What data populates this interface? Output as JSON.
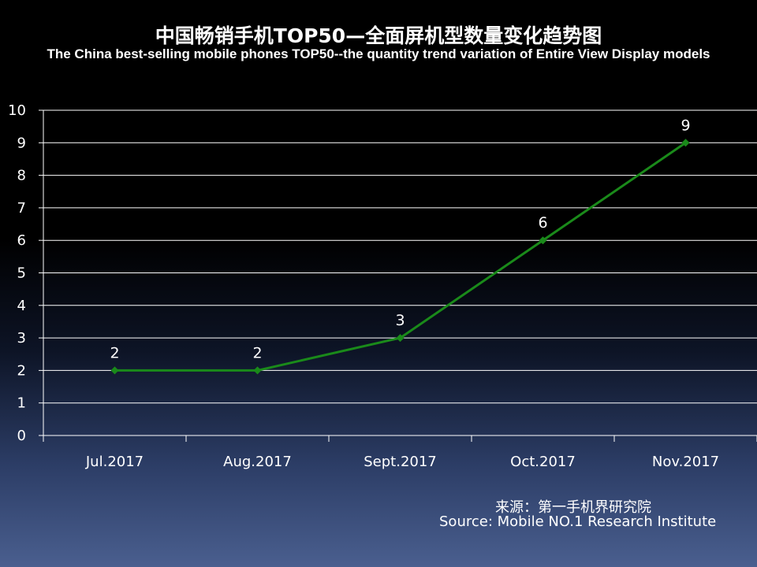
{
  "title": "中国畅销手机TOP50—全面屏机型数量变化趋势图",
  "subtitle": "The China best-selling mobile phones TOP50--the quantity trend variation of Entire View Display models",
  "source_cn": "来源：第一手机界研究院",
  "source_en": "Source: Mobile NO.1 Research Institute",
  "colors": {
    "line": "#1a8a1a",
    "grid": "#ffffff",
    "text": "#ffffff"
  },
  "chart_data": {
    "type": "line",
    "categories": [
      "Jul.2017",
      "Aug.2017",
      "Sept.2017",
      "Oct.2017",
      "Nov.2017"
    ],
    "values": [
      2,
      2,
      3,
      6,
      9
    ],
    "data_labels": [
      "2",
      "2",
      "3",
      "6",
      "9"
    ],
    "ylim": [
      0,
      10
    ],
    "yticks": [
      0,
      1,
      2,
      3,
      4,
      5,
      6,
      7,
      8,
      9,
      10
    ],
    "grid": true,
    "marker": "diamond",
    "legend": "none"
  }
}
